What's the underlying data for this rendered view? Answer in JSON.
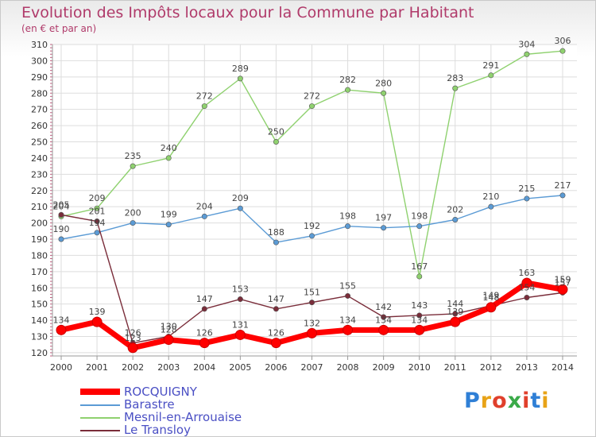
{
  "title": "Evolution des Impôts locaux pour la Commune par Habitant",
  "subtitle": "(en € et par an)",
  "logo": {
    "text": "Proxiti",
    "letter_colors": [
      "#2f7fd6",
      "#e8a317",
      "#e0402c",
      "#3aaa48",
      "#e0402c",
      "#2f7fd6",
      "#e8a317"
    ]
  },
  "chart_data": {
    "type": "line",
    "x": [
      "2000",
      "2001",
      "2002",
      "2003",
      "2004",
      "2005",
      "2006",
      "2007",
      "2008",
      "2009",
      "2010",
      "2011",
      "2012",
      "2013",
      "2014"
    ],
    "ylim": [
      118,
      310
    ],
    "yticks": [
      120,
      130,
      140,
      150,
      160,
      170,
      180,
      190,
      200,
      210,
      220,
      230,
      240,
      250,
      260,
      270,
      280,
      290,
      300,
      310
    ],
    "grid": true,
    "legend_position": "bottom-left",
    "series": [
      {
        "name": "ROCQUIGNY",
        "color": "#ff0000",
        "values": [
          134,
          139,
          123,
          128,
          126,
          131,
          126,
          132,
          134,
          134,
          134,
          139,
          148,
          163,
          159
        ]
      },
      {
        "name": "Barastre",
        "color": "#5b9bd5",
        "values": [
          190,
          194,
          200,
          199,
          204,
          209,
          188,
          192,
          198,
          197,
          198,
          202,
          210,
          215,
          217
        ]
      },
      {
        "name": "Mesnil-en-Arrouaise",
        "color": "#8fd16f",
        "values": [
          204,
          209,
          235,
          240,
          272,
          289,
          250,
          272,
          282,
          280,
          167,
          283,
          291,
          304,
          306
        ]
      },
      {
        "name": "Le Transloy",
        "color": "#7a2d3a",
        "values": [
          205,
          201,
          126,
          130,
          147,
          153,
          147,
          151,
          155,
          142,
          143,
          144,
          149,
          154,
          157
        ]
      }
    ]
  }
}
